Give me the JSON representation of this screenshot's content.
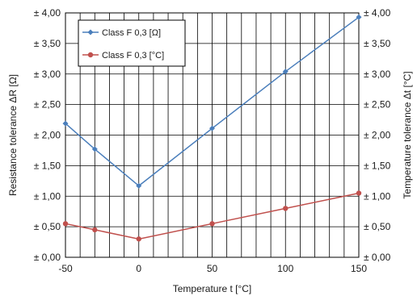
{
  "chart_data": {
    "type": "line",
    "title": "",
    "xlabel": "Temperature t [°C]",
    "ylabel_left": "Resistance tolerance ΔR [Ω]",
    "ylabel_right": "Temperature tolerance Δt [°C]",
    "xlim": [
      -50,
      150
    ],
    "ylim": [
      0,
      4
    ],
    "x_ticks": [
      -50,
      0,
      50,
      100,
      150
    ],
    "x_tick_labels": [
      "-50",
      "0",
      "50",
      "100",
      "150"
    ],
    "y_ticks": [
      0,
      0.5,
      1.0,
      1.5,
      2.0,
      2.5,
      3.0,
      3.5,
      4.0
    ],
    "y_tick_labels": [
      "± 0,00",
      "± 0,50",
      "± 1,00",
      "± 1,50",
      "± 2,00",
      "± 2,50",
      "± 3,00",
      "± 3,50",
      "± 4,00"
    ],
    "grid": true,
    "legend_position": "top-left",
    "series": [
      {
        "name": "Class F 0,3 [Ω]",
        "color": "#4a7ebb",
        "marker": "diamond",
        "x": [
          -50,
          -30,
          0,
          50,
          100,
          150
        ],
        "y": [
          2.19,
          1.77,
          1.17,
          2.11,
          3.04,
          3.93
        ]
      },
      {
        "name": "Class F 0,3 [°C]",
        "color": "#c0504d",
        "marker": "circle",
        "x": [
          -50,
          -30,
          0,
          50,
          100,
          150
        ],
        "y": [
          0.55,
          0.45,
          0.3,
          0.55,
          0.8,
          1.05
        ]
      }
    ]
  }
}
